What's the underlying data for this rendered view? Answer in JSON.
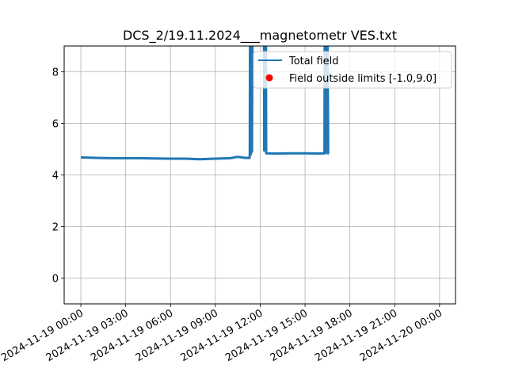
{
  "chart_data": {
    "type": "line",
    "title": "DCS_2/19.11.2024___magnetometr VES.txt",
    "xlabel": "",
    "ylabel": "",
    "ylim": [
      -1,
      9
    ],
    "xlim": [
      "2024-11-18 22:53",
      "2024-11-20 01:04"
    ],
    "grid": true,
    "legend_position": "top-right",
    "x_tick_labels": [
      "2024-11-19 00:00",
      "2024-11-19 03:00",
      "2024-11-19 06:00",
      "2024-11-19 09:00",
      "2024-11-19 12:00",
      "2024-11-19 15:00",
      "2024-11-19 18:00",
      "2024-11-19 21:00",
      "2024-11-20 00:00"
    ],
    "y_ticks": [
      0,
      2,
      4,
      6,
      8
    ],
    "series": [
      {
        "name": "Total field",
        "color": "#1f77b4",
        "points": [
          [
            "2024-11-19 00:00",
            4.68
          ],
          [
            "2024-11-19 01:00",
            4.66
          ],
          [
            "2024-11-19 02:00",
            4.65
          ],
          [
            "2024-11-19 03:00",
            4.65
          ],
          [
            "2024-11-19 04:00",
            4.65
          ],
          [
            "2024-11-19 05:00",
            4.64
          ],
          [
            "2024-11-19 06:00",
            4.63
          ],
          [
            "2024-11-19 07:00",
            4.63
          ],
          [
            "2024-11-19 08:00",
            4.61
          ],
          [
            "2024-11-19 09:00",
            4.63
          ],
          [
            "2024-11-19 10:00",
            4.65
          ],
          [
            "2024-11-19 10:30",
            4.7
          ],
          [
            "2024-11-19 11:00",
            4.66
          ],
          [
            "2024-11-19 11:17",
            4.66
          ],
          [
            "2024-11-19 11:18",
            4.8
          ],
          [
            "2024-11-19 11:19",
            10
          ],
          [
            "2024-11-19 11:22",
            4.8
          ],
          [
            "2024-11-19 11:24",
            10
          ],
          [
            "2024-11-19 11:27",
            4.9
          ],
          [
            "2024-11-19 11:29",
            10
          ],
          [
            "2024-11-19 11:33",
            10
          ],
          [
            "2024-11-19 12:15",
            10
          ],
          [
            "2024-11-19 12:16",
            4.95
          ],
          [
            "2024-11-19 12:18",
            4.95
          ],
          [
            "2024-11-19 12:19",
            10
          ],
          [
            "2024-11-19 12:23",
            10
          ],
          [
            "2024-11-19 12:24",
            4.84
          ],
          [
            "2024-11-19 13:00",
            4.83
          ],
          [
            "2024-11-19 14:00",
            4.84
          ],
          [
            "2024-11-19 15:00",
            4.84
          ],
          [
            "2024-11-19 16:00",
            4.83
          ],
          [
            "2024-11-19 16:18",
            4.84
          ],
          [
            "2024-11-19 16:19",
            10
          ],
          [
            "2024-11-19 16:23",
            4.85
          ],
          [
            "2024-11-19 16:25",
            10
          ],
          [
            "2024-11-19 16:30",
            10
          ],
          [
            "2024-11-19 16:33",
            4.83
          ],
          [
            "2024-11-19 16:35",
            4.83
          ]
        ]
      },
      {
        "name": "Field outside limits [-1.0,9.0]",
        "color": "#ff0000",
        "points": []
      }
    ]
  }
}
